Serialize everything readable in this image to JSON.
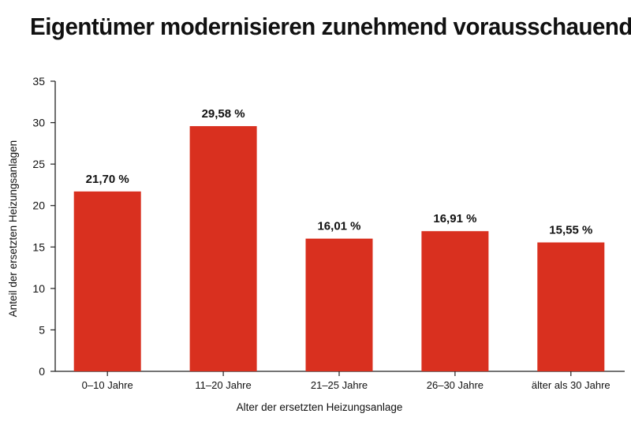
{
  "chart_data": {
    "type": "bar",
    "title": "Eigentümer modernisieren zunehmend vorausschauend",
    "xlabel": "Alter der ersetzten Heizungsanlage",
    "ylabel": "Anteil der ersetzten Heizungsanlagen",
    "categories": [
      "0–10 Jahre",
      "11–20 Jahre",
      "21–25 Jahre",
      "26–30 Jahre",
      "älter als 30 Jahre"
    ],
    "values": [
      21.7,
      29.58,
      16.01,
      16.91,
      15.55
    ],
    "value_labels": [
      "21,70 %",
      "29,58 %",
      "16,01 %",
      "16,91 %",
      "15,55 %"
    ],
    "ylim": [
      0,
      35
    ],
    "yticks": [
      0,
      5,
      10,
      15,
      20,
      25,
      30,
      35
    ],
    "grid": false,
    "legend": "none",
    "colors": {
      "bar": "#d9301f",
      "axis": "#222222",
      "text": "#111111"
    }
  }
}
